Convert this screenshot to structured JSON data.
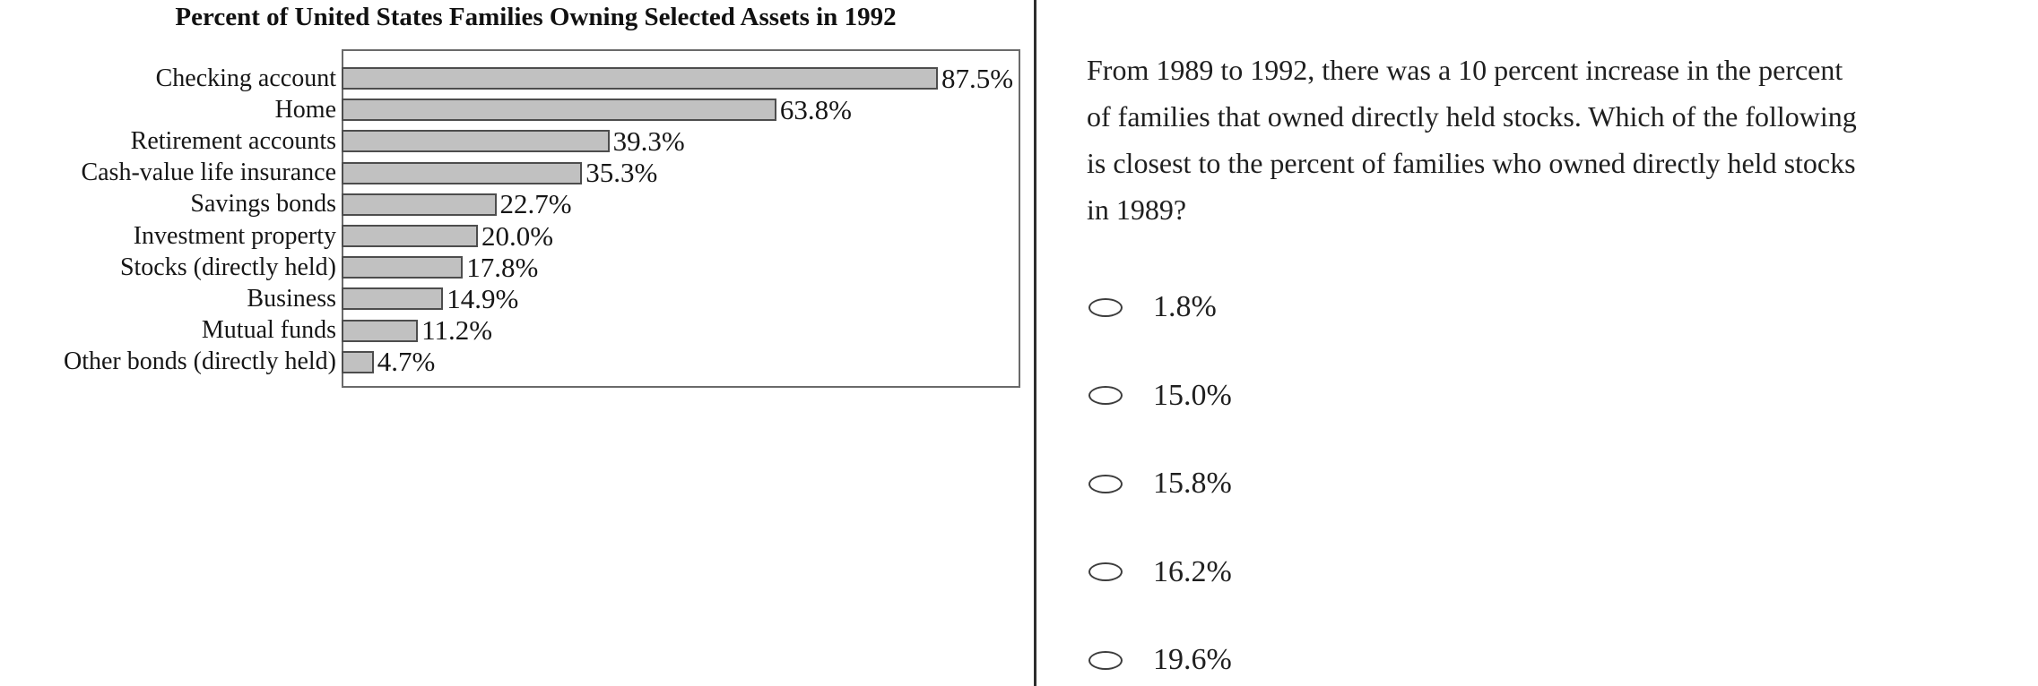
{
  "chart_data": {
    "type": "bar",
    "orientation": "horizontal",
    "title": "Percent of United States Families Owning Selected Assets in 1992",
    "categories": [
      "Checking account",
      "Home",
      "Retirement accounts",
      "Cash-value life insurance",
      "Savings bonds",
      "Investment property",
      "Stocks (directly held)",
      "Business",
      "Mutual funds",
      "Other bonds (directly held)"
    ],
    "values": [
      87.5,
      63.8,
      39.3,
      35.3,
      22.7,
      20.0,
      17.8,
      14.9,
      11.2,
      4.7
    ],
    "value_labels": [
      "87.5%",
      "63.8%",
      "39.3%",
      "35.3%",
      "22.7%",
      "20.0%",
      "17.8%",
      "14.9%",
      "11.2%",
      "4.7%"
    ],
    "xlabel": "",
    "ylabel": "",
    "xlim": [
      0,
      100
    ],
    "grid": false,
    "legend": false,
    "bar_fill": "#c1c1c1",
    "bar_border": "#4d4d4d"
  },
  "question": {
    "lines": [
      "From 1989 to 1992, there was a 10 percent increase in the percent",
      "of families that owned directly held stocks. Which of the following",
      "is closest to the percent of families who owned directly held stocks",
      "in 1989?"
    ]
  },
  "options": [
    "1.8%",
    "15.0%",
    "15.8%",
    "16.2%",
    "19.6%"
  ],
  "colors": {
    "divider": "#2e2e2e",
    "text": "#1f1f1f",
    "bar_fill": "#c1c1c1",
    "bar_border": "#4d4d4d",
    "chart_box_border": "#6a6a6a"
  }
}
